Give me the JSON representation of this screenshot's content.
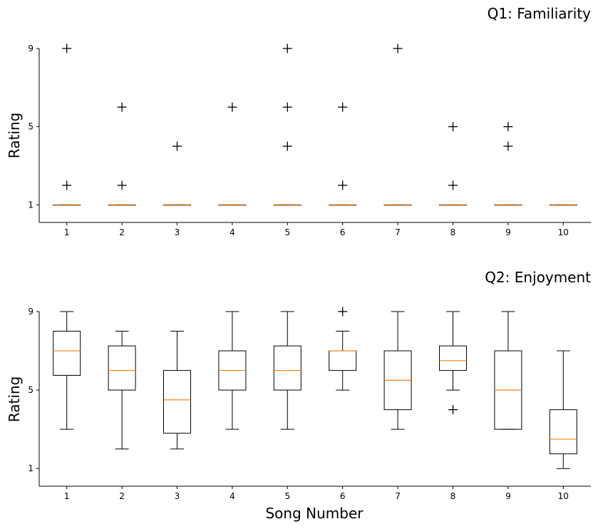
{
  "chart_data": [
    {
      "type": "box",
      "title": "Q1: Familiarity",
      "ylabel": "Rating",
      "xlabel": "",
      "ylim": [
        0,
        9
      ],
      "yticks": [
        1,
        5,
        9
      ],
      "categories": [
        "1",
        "2",
        "3",
        "4",
        "5",
        "6",
        "7",
        "8",
        "9",
        "10"
      ],
      "boxes": [
        {
          "q1": 1,
          "median": 1,
          "q3": 1,
          "whisker_low": 1,
          "whisker_high": 1,
          "outliers": [
            2,
            9
          ]
        },
        {
          "q1": 1,
          "median": 1,
          "q3": 1,
          "whisker_low": 1,
          "whisker_high": 1,
          "outliers": [
            2,
            6
          ]
        },
        {
          "q1": 1,
          "median": 1,
          "q3": 1,
          "whisker_low": 1,
          "whisker_high": 1,
          "outliers": [
            4
          ]
        },
        {
          "q1": 1,
          "median": 1,
          "q3": 1,
          "whisker_low": 1,
          "whisker_high": 1,
          "outliers": [
            6
          ]
        },
        {
          "q1": 1,
          "median": 1,
          "q3": 1,
          "whisker_low": 1,
          "whisker_high": 1,
          "outliers": [
            4,
            6,
            9
          ]
        },
        {
          "q1": 1,
          "median": 1,
          "q3": 1,
          "whisker_low": 1,
          "whisker_high": 1,
          "outliers": [
            2,
            6
          ]
        },
        {
          "q1": 1,
          "median": 1,
          "q3": 1,
          "whisker_low": 1,
          "whisker_high": 1,
          "outliers": [
            9
          ]
        },
        {
          "q1": 1,
          "median": 1,
          "q3": 1,
          "whisker_low": 1,
          "whisker_high": 1,
          "outliers": [
            2,
            5
          ]
        },
        {
          "q1": 1,
          "median": 1,
          "q3": 1,
          "whisker_low": 1,
          "whisker_high": 1,
          "outliers": [
            4,
            5
          ]
        },
        {
          "q1": 1,
          "median": 1,
          "q3": 1,
          "whisker_low": 1,
          "whisker_high": 1,
          "outliers": []
        }
      ]
    },
    {
      "type": "box",
      "title": "Q2: Enjoyment",
      "ylabel": "Rating",
      "xlabel": "Song Number",
      "ylim": [
        0,
        9
      ],
      "yticks": [
        1,
        5,
        9
      ],
      "categories": [
        "1",
        "2",
        "3",
        "4",
        "5",
        "6",
        "7",
        "8",
        "9",
        "10"
      ],
      "boxes": [
        {
          "q1": 5.75,
          "median": 7,
          "q3": 8,
          "whisker_low": 3,
          "whisker_high": 9,
          "outliers": []
        },
        {
          "q1": 5,
          "median": 6,
          "q3": 7.25,
          "whisker_low": 2,
          "whisker_high": 8,
          "outliers": []
        },
        {
          "q1": 2.8,
          "median": 4.5,
          "q3": 6,
          "whisker_low": 2,
          "whisker_high": 8,
          "outliers": []
        },
        {
          "q1": 5,
          "median": 6,
          "q3": 7,
          "whisker_low": 3,
          "whisker_high": 9,
          "outliers": []
        },
        {
          "q1": 5,
          "median": 6,
          "q3": 7.25,
          "whisker_low": 3,
          "whisker_high": 9,
          "outliers": []
        },
        {
          "q1": 6,
          "median": 7,
          "q3": 7,
          "whisker_low": 5,
          "whisker_high": 8,
          "outliers": [
            9
          ]
        },
        {
          "q1": 4,
          "median": 5.5,
          "q3": 7,
          "whisker_low": 3,
          "whisker_high": 9,
          "outliers": []
        },
        {
          "q1": 6,
          "median": 6.5,
          "q3": 7.25,
          "whisker_low": 5,
          "whisker_high": 9,
          "outliers": [
            4
          ]
        },
        {
          "q1": 3,
          "median": 5,
          "q3": 7,
          "whisker_low": 3,
          "whisker_high": 9,
          "outliers": []
        },
        {
          "q1": 1.75,
          "median": 2.5,
          "q3": 4,
          "whisker_low": 1,
          "whisker_high": 7,
          "outliers": []
        }
      ]
    }
  ],
  "colors": {
    "box_edge": "#000000",
    "median": "#ff7f0e",
    "outlier": "#000000"
  }
}
